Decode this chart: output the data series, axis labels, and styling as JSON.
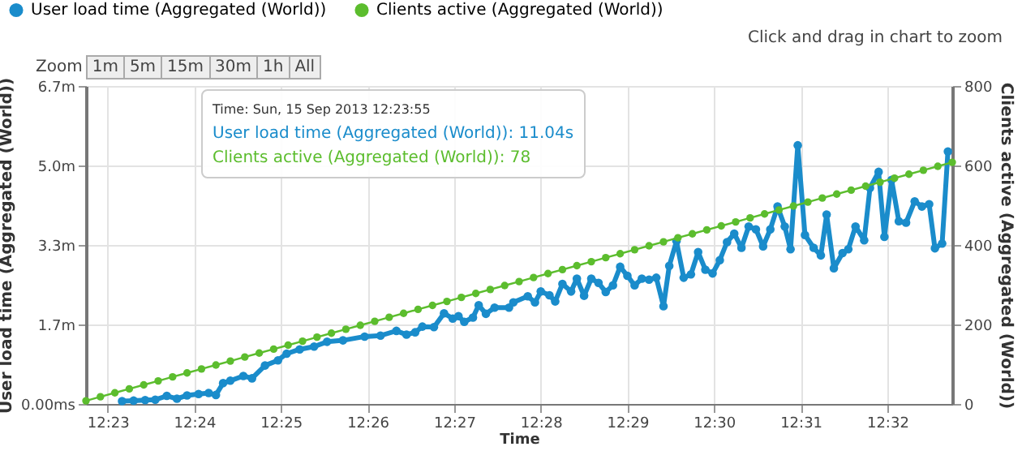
{
  "chart_data": {
    "type": "line",
    "xlabel": "Time",
    "ylabel": "User load time (Aggregated (World))",
    "y2label": "Clients active (Aggregated (World))",
    "xlim": [
      "2013-09-15T12:22:45",
      "2013-09-15T12:32:45"
    ],
    "xticks": [
      {
        "value": "2013-09-15T12:23",
        "label": "12:23"
      },
      {
        "value": "2013-09-15T12:24",
        "label": "12:24"
      },
      {
        "value": "2013-09-15T12:25",
        "label": "12:25"
      },
      {
        "value": "2013-09-15T12:26",
        "label": "12:26"
      },
      {
        "value": "2013-09-15T12:27",
        "label": "12:27"
      },
      {
        "value": "2013-09-15T12:28",
        "label": "12:28"
      },
      {
        "value": "2013-09-15T12:29",
        "label": "12:29"
      },
      {
        "value": "2013-09-15T12:30",
        "label": "12:30"
      },
      {
        "value": "2013-09-15T12:31",
        "label": "12:31"
      },
      {
        "value": "2013-09-15T12:32",
        "label": "12:32"
      }
    ],
    "ylim": [
      0,
      6.7
    ],
    "yticks": [
      {
        "value": 0,
        "label": "0.00ms"
      },
      {
        "value": 1.675,
        "label": "1.7m"
      },
      {
        "value": 3.35,
        "label": "3.3m"
      },
      {
        "value": 5.025,
        "label": "5.0m"
      },
      {
        "value": 6.7,
        "label": "6.7m"
      }
    ],
    "y2lim": [
      0,
      800
    ],
    "y2ticks": [
      0,
      200,
      400,
      600,
      800
    ],
    "grid": true,
    "legend": "top left",
    "marker": "circle",
    "line_style": "solid",
    "annotations": [
      "Click and drag in chart to zoom",
      "Zoom",
      "1m",
      "5m",
      "15m",
      "30m",
      "1h",
      "All",
      "Time: Sun, 15 Sep 2013 12:23:55",
      "User load time (Aggregated (World)): 11.04s",
      "Clients active (Aggregated (World)): 78"
    ],
    "series": [
      {
        "name": "User load time (Aggregated (World))",
        "color": "#1a8ccb",
        "x": [
          "2013-09-15T12:23:10",
          "2013-09-15T12:23:18",
          "2013-09-15T12:23:26",
          "2013-09-15T12:23:33",
          "2013-09-15T12:23:41",
          "2013-09-15T12:23:48",
          "2013-09-15T12:23:55",
          "2013-09-15T12:24:03",
          "2013-09-15T12:24:10",
          "2013-09-15T12:24:15",
          "2013-09-15T12:24:20",
          "2013-09-15T12:24:25",
          "2013-09-15T12:24:34",
          "2013-09-15T12:24:40",
          "2013-09-15T12:24:49",
          "2013-09-15T12:24:58",
          "2013-09-15T12:25:04",
          "2013-09-15T12:25:13",
          "2013-09-15T12:25:23",
          "2013-09-15T12:25:32",
          "2013-09-15T12:25:43",
          "2013-09-15T12:25:58",
          "2013-09-15T12:26:09",
          "2013-09-15T12:26:20",
          "2013-09-15T12:26:27",
          "2013-09-15T12:26:33",
          "2013-09-15T12:26:38",
          "2013-09-15T12:26:46",
          "2013-09-15T12:26:53",
          "2013-09-15T12:26:59",
          "2013-09-15T12:27:03",
          "2013-09-15T12:27:07",
          "2013-09-15T12:27:13",
          "2013-09-15T12:27:17",
          "2013-09-15T12:27:22",
          "2013-09-15T12:27:28",
          "2013-09-15T12:27:38",
          "2013-09-15T12:27:41",
          "2013-09-15T12:27:51",
          "2013-09-15T12:27:56",
          "2013-09-15T12:28:00",
          "2013-09-15T12:28:06",
          "2013-09-15T12:28:10",
          "2013-09-15T12:28:15",
          "2013-09-15T12:28:21",
          "2013-09-15T12:28:25",
          "2013-09-15T12:28:30",
          "2013-09-15T12:28:35",
          "2013-09-15T12:28:40",
          "2013-09-15T12:28:45",
          "2013-09-15T12:28:50",
          "2013-09-15T12:28:55",
          "2013-09-15T12:29:00",
          "2013-09-15T12:29:05",
          "2013-09-15T12:29:10",
          "2013-09-15T12:29:15",
          "2013-09-15T12:29:20",
          "2013-09-15T12:29:25",
          "2013-09-15T12:29:29",
          "2013-09-15T12:29:34",
          "2013-09-15T12:29:39",
          "2013-09-15T12:29:44",
          "2013-09-15T12:29:49",
          "2013-09-15T12:29:54",
          "2013-09-15T12:29:59",
          "2013-09-15T12:30:04",
          "2013-09-15T12:30:09",
          "2013-09-15T12:30:14",
          "2013-09-15T12:30:19",
          "2013-09-15T12:30:24",
          "2013-09-15T12:30:29",
          "2013-09-15T12:30:34",
          "2013-09-15T12:30:39",
          "2013-09-15T12:30:44",
          "2013-09-15T12:30:49",
          "2013-09-15T12:30:53",
          "2013-09-15T12:30:58",
          "2013-09-15T12:31:03",
          "2013-09-15T12:31:09",
          "2013-09-15T12:31:14",
          "2013-09-15T12:31:18",
          "2013-09-15T12:31:23",
          "2013-09-15T12:31:29",
          "2013-09-15T12:31:33",
          "2013-09-15T12:31:38",
          "2013-09-15T12:31:44",
          "2013-09-15T12:31:48",
          "2013-09-15T12:31:54",
          "2013-09-15T12:31:58",
          "2013-09-15T12:32:03",
          "2013-09-15T12:32:08",
          "2013-09-15T12:32:13",
          "2013-09-15T12:32:19",
          "2013-09-15T12:32:24",
          "2013-09-15T12:32:29",
          "2013-09-15T12:32:33",
          "2013-09-15T12:32:38",
          "2013-09-15T12:32:42"
        ],
        "values": [
          0.06,
          0.07,
          0.08,
          0.09,
          0.17,
          0.11,
          0.18,
          0.21,
          0.23,
          0.19,
          0.44,
          0.49,
          0.59,
          0.54,
          0.81,
          0.92,
          1.06,
          1.15,
          1.21,
          1.31,
          1.34,
          1.42,
          1.44,
          1.54,
          1.46,
          1.51,
          1.63,
          1.62,
          1.91,
          1.8,
          1.85,
          1.73,
          1.82,
          2.08,
          1.9,
          2.03,
          2.03,
          2.14,
          2.27,
          2.14,
          2.37,
          2.29,
          2.16,
          2.53,
          2.37,
          2.64,
          2.28,
          2.64,
          2.55,
          2.36,
          2.5,
          2.89,
          2.7,
          2.5,
          2.64,
          2.62,
          2.66,
          2.06,
          2.91,
          3.43,
          2.66,
          2.73,
          3.2,
          2.83,
          2.75,
          3.03,
          3.41,
          3.59,
          3.29,
          3.74,
          3.68,
          3.32,
          3.68,
          4.16,
          3.74,
          3.26,
          5.45,
          3.56,
          3.29,
          3.13,
          3.99,
          2.86,
          3.18,
          3.26,
          3.74,
          3.45,
          4.55,
          4.89,
          3.52,
          4.72,
          3.85,
          3.82,
          4.27,
          4.16,
          4.21,
          3.28,
          3.38,
          5.32
        ]
      },
      {
        "name": "Clients active (Aggregated (World))",
        "color": "#5cbd2e",
        "axis": "y2",
        "x": [
          "2013-09-15T12:22:45",
          "2013-09-15T12:22:55",
          "2013-09-15T12:23:05",
          "2013-09-15T12:23:15",
          "2013-09-15T12:23:25",
          "2013-09-15T12:23:35",
          "2013-09-15T12:23:45",
          "2013-09-15T12:23:55",
          "2013-09-15T12:24:05",
          "2013-09-15T12:24:15",
          "2013-09-15T12:24:25",
          "2013-09-15T12:24:35",
          "2013-09-15T12:24:45",
          "2013-09-15T12:24:55",
          "2013-09-15T12:25:05",
          "2013-09-15T12:25:15",
          "2013-09-15T12:25:25",
          "2013-09-15T12:25:35",
          "2013-09-15T12:25:45",
          "2013-09-15T12:25:55",
          "2013-09-15T12:26:05",
          "2013-09-15T12:26:15",
          "2013-09-15T12:26:25",
          "2013-09-15T12:26:35",
          "2013-09-15T12:26:45",
          "2013-09-15T12:26:55",
          "2013-09-15T12:27:05",
          "2013-09-15T12:27:15",
          "2013-09-15T12:27:25",
          "2013-09-15T12:27:35",
          "2013-09-15T12:27:45",
          "2013-09-15T12:27:55",
          "2013-09-15T12:28:05",
          "2013-09-15T12:28:15",
          "2013-09-15T12:28:25",
          "2013-09-15T12:28:35",
          "2013-09-15T12:28:45",
          "2013-09-15T12:28:55",
          "2013-09-15T12:29:05",
          "2013-09-15T12:29:15",
          "2013-09-15T12:29:25",
          "2013-09-15T12:29:35",
          "2013-09-15T12:29:45",
          "2013-09-15T12:29:55",
          "2013-09-15T12:30:05",
          "2013-09-15T12:30:15",
          "2013-09-15T12:30:25",
          "2013-09-15T12:30:35",
          "2013-09-15T12:30:45",
          "2013-09-15T12:30:55",
          "2013-09-15T12:31:05",
          "2013-09-15T12:31:15",
          "2013-09-15T12:31:25",
          "2013-09-15T12:31:35",
          "2013-09-15T12:31:45",
          "2013-09-15T12:31:55",
          "2013-09-15T12:32:05",
          "2013-09-15T12:32:15",
          "2013-09-15T12:32:25",
          "2013-09-15T12:32:35",
          "2013-09-15T12:32:45"
        ],
        "values": [
          8,
          18,
          28,
          38,
          48,
          58,
          68,
          78,
          88,
          98,
          108,
          118,
          128,
          138,
          148,
          158,
          168,
          178,
          188,
          198,
          208,
          218,
          228,
          238,
          248,
          258,
          268,
          278,
          288,
          298,
          308,
          318,
          328,
          338,
          348,
          358,
          368,
          378,
          388,
          398,
          408,
          418,
          428,
          438,
          448,
          458,
          468,
          478,
          488,
          498,
          508,
          518,
          528,
          538,
          548,
          558,
          568,
          578,
          588,
          598,
          608
        ]
      }
    ]
  }
}
